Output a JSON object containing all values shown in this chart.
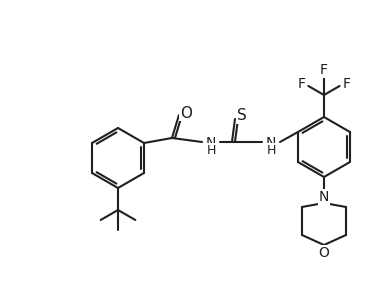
{
  "bg_color": "#ffffff",
  "line_color": "#231f20",
  "bond_width": 1.5,
  "font_size": 10,
  "figsize": [
    3.92,
    2.93
  ],
  "dpi": 100,
  "xlim": [
    0,
    392
  ],
  "ylim": [
    0,
    293
  ]
}
